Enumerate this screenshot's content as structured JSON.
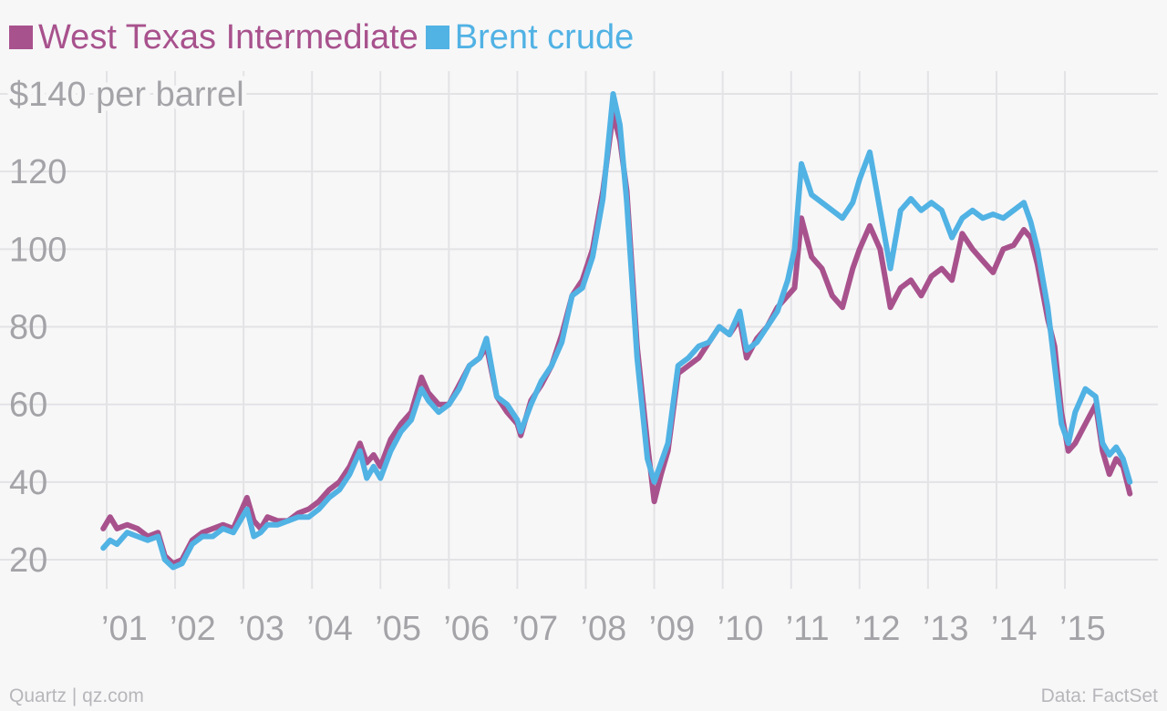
{
  "legend": [
    {
      "label": "West Texas Intermediate",
      "color": "#a8528d"
    },
    {
      "label": "Brent crude",
      "color": "#51b2e4"
    }
  ],
  "footer": {
    "source": "Quartz | qz.com",
    "credit": "Data: FactSet"
  },
  "chart_data": {
    "type": "line",
    "ylabel": "$140 per barrel",
    "ylim": [
      10,
      145
    ],
    "xlim": [
      2000.9,
      2016.2
    ],
    "yticks": [
      20,
      40,
      60,
      80,
      100,
      120,
      140
    ],
    "ytick_labels": [
      "20",
      "40",
      "60",
      "80",
      "100",
      "120",
      "$140 per barrel"
    ],
    "xticks": [
      2001,
      2002,
      2003,
      2004,
      2005,
      2006,
      2007,
      2008,
      2009,
      2010,
      2011,
      2012,
      2013,
      2014,
      2015
    ],
    "xtick_labels": [
      "’01",
      "’02",
      "’03",
      "’04",
      "’05",
      "’06",
      "’07",
      "’08",
      "’09",
      "’10",
      "’11",
      "’12",
      "’13",
      "’14",
      "’15"
    ],
    "grid": true,
    "series": [
      {
        "name": "West Texas Intermediate",
        "color": "#a8528d",
        "x": [
          2000.95,
          2001.05,
          2001.15,
          2001.3,
          2001.45,
          2001.6,
          2001.75,
          2001.85,
          2001.97,
          2002.1,
          2002.25,
          2002.4,
          2002.55,
          2002.7,
          2002.85,
          2002.95,
          2003.05,
          2003.15,
          2003.25,
          2003.35,
          2003.5,
          2003.65,
          2003.8,
          2003.95,
          2004.1,
          2004.25,
          2004.4,
          2004.55,
          2004.7,
          2004.8,
          2004.9,
          2005.0,
          2005.15,
          2005.3,
          2005.45,
          2005.6,
          2005.7,
          2005.85,
          2006.0,
          2006.15,
          2006.3,
          2006.45,
          2006.55,
          2006.7,
          2006.85,
          2007.0,
          2007.05,
          2007.2,
          2007.35,
          2007.5,
          2007.65,
          2007.8,
          2007.95,
          2008.1,
          2008.25,
          2008.4,
          2008.5,
          2008.6,
          2008.75,
          2008.9,
          2009.0,
          2009.1,
          2009.2,
          2009.35,
          2009.5,
          2009.65,
          2009.8,
          2009.95,
          2010.1,
          2010.25,
          2010.35,
          2010.5,
          2010.65,
          2010.8,
          2010.95,
          2011.05,
          2011.15,
          2011.3,
          2011.45,
          2011.6,
          2011.75,
          2011.9,
          2012.0,
          2012.15,
          2012.3,
          2012.45,
          2012.6,
          2012.75,
          2012.9,
          2013.05,
          2013.2,
          2013.35,
          2013.5,
          2013.65,
          2013.8,
          2013.95,
          2014.1,
          2014.25,
          2014.4,
          2014.5,
          2014.6,
          2014.75,
          2014.85,
          2014.95,
          2015.05,
          2015.15,
          2015.3,
          2015.45,
          2015.55,
          2015.65,
          2015.75,
          2015.85,
          2015.95
        ],
        "values": [
          28,
          31,
          28,
          29,
          28,
          26,
          27,
          21,
          19,
          20,
          25,
          27,
          28,
          29,
          28,
          32,
          36,
          30,
          28,
          31,
          30,
          30,
          32,
          33,
          35,
          38,
          40,
          44,
          50,
          45,
          47,
          44,
          51,
          55,
          58,
          67,
          63,
          60,
          60,
          65,
          70,
          72,
          75,
          62,
          58,
          55,
          52,
          61,
          65,
          70,
          78,
          88,
          92,
          100,
          115,
          135,
          128,
          115,
          75,
          50,
          35,
          42,
          48,
          68,
          70,
          72,
          76,
          80,
          78,
          82,
          72,
          77,
          80,
          85,
          88,
          90,
          108,
          98,
          95,
          88,
          85,
          95,
          100,
          106,
          100,
          85,
          90,
          92,
          88,
          93,
          95,
          92,
          104,
          100,
          97,
          94,
          100,
          101,
          105,
          103,
          96,
          82,
          75,
          58,
          48,
          50,
          55,
          60,
          48,
          42,
          46,
          44,
          37
        ]
      },
      {
        "name": "Brent crude",
        "color": "#51b2e4",
        "x": [
          2000.95,
          2001.05,
          2001.15,
          2001.3,
          2001.45,
          2001.6,
          2001.75,
          2001.85,
          2001.97,
          2002.1,
          2002.25,
          2002.4,
          2002.55,
          2002.7,
          2002.85,
          2002.95,
          2003.05,
          2003.15,
          2003.25,
          2003.35,
          2003.5,
          2003.65,
          2003.8,
          2003.95,
          2004.1,
          2004.25,
          2004.4,
          2004.55,
          2004.7,
          2004.8,
          2004.9,
          2005.0,
          2005.15,
          2005.3,
          2005.45,
          2005.6,
          2005.7,
          2005.85,
          2006.0,
          2006.15,
          2006.3,
          2006.45,
          2006.55,
          2006.7,
          2006.85,
          2007.0,
          2007.05,
          2007.2,
          2007.35,
          2007.5,
          2007.65,
          2007.8,
          2007.95,
          2008.1,
          2008.25,
          2008.4,
          2008.5,
          2008.6,
          2008.75,
          2008.9,
          2009.0,
          2009.1,
          2009.2,
          2009.35,
          2009.5,
          2009.65,
          2009.8,
          2009.95,
          2010.1,
          2010.25,
          2010.35,
          2010.5,
          2010.65,
          2010.8,
          2010.95,
          2011.05,
          2011.15,
          2011.3,
          2011.45,
          2011.6,
          2011.75,
          2011.9,
          2012.0,
          2012.15,
          2012.3,
          2012.45,
          2012.6,
          2012.75,
          2012.9,
          2013.05,
          2013.2,
          2013.35,
          2013.5,
          2013.65,
          2013.8,
          2013.95,
          2014.1,
          2014.25,
          2014.4,
          2014.5,
          2014.6,
          2014.75,
          2014.85,
          2014.95,
          2015.05,
          2015.15,
          2015.3,
          2015.45,
          2015.55,
          2015.65,
          2015.75,
          2015.85,
          2015.95
        ],
        "values": [
          23,
          25,
          24,
          27,
          26,
          25,
          26,
          20,
          18,
          19,
          24,
          26,
          26,
          28,
          27,
          30,
          33,
          26,
          27,
          29,
          29,
          30,
          31,
          31,
          33,
          36,
          38,
          42,
          48,
          41,
          44,
          41,
          48,
          53,
          56,
          64,
          61,
          58,
          60,
          64,
          70,
          72,
          77,
          62,
          60,
          56,
          53,
          60,
          66,
          70,
          76,
          88,
          90,
          98,
          113,
          140,
          132,
          112,
          72,
          46,
          40,
          45,
          50,
          70,
          72,
          75,
          76,
          80,
          78,
          84,
          74,
          76,
          80,
          84,
          92,
          100,
          122,
          114,
          112,
          110,
          108,
          112,
          118,
          125,
          110,
          95,
          110,
          113,
          110,
          112,
          110,
          103,
          108,
          110,
          108,
          109,
          108,
          110,
          112,
          107,
          100,
          85,
          70,
          55,
          50,
          58,
          64,
          62,
          50,
          47,
          49,
          46,
          40
        ]
      }
    ]
  }
}
